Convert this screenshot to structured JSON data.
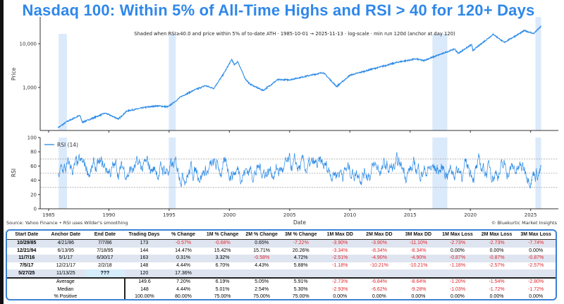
{
  "title": "Nasdaq 100: Within 5% of All-Time Highs and RSI > 40 for 120+ Days",
  "colors": {
    "accent": "#2f87ea",
    "line": "#2a8ae6",
    "shade": "#dbeafb",
    "negative": "#e0252b"
  },
  "chart_data": [
    {
      "type": "line",
      "title": "Shaded when RSI≥40.0 and price within 5% of to-date ATH · 1985-10-01 → 2025-11-13 · log-scale · min run 120d (anchor at day 120)",
      "ylabel": "Price",
      "yscale": "log",
      "ylim": [
        115,
        30000
      ],
      "yticks": [
        {
          "value": 1000,
          "label": "1,000"
        },
        {
          "value": 10000,
          "label": "10,000"
        }
      ],
      "xlim": [
        1984.3,
        2027.3
      ],
      "shaded_periods": [
        [
          1985.83,
          1986.52
        ],
        [
          1994.97,
          1995.55
        ],
        [
          2016.85,
          2018.09
        ],
        [
          2025.4,
          2025.87
        ]
      ],
      "series": [
        {
          "name": "Nasdaq 100",
          "points": [
            [
              1985.8,
              120
            ],
            [
              1986.5,
              165
            ],
            [
              1987.6,
              230
            ],
            [
              1987.8,
              160
            ],
            [
              1988.5,
              190
            ],
            [
              1989.7,
              260
            ],
            [
              1990.8,
              190
            ],
            [
              1991.5,
              290
            ],
            [
              1993,
              350
            ],
            [
              1994,
              380
            ],
            [
              1994.9,
              360
            ],
            [
              1995.5,
              480
            ],
            [
              1996,
              620
            ],
            [
              1997,
              850
            ],
            [
              1998,
              1100
            ],
            [
              1998.7,
              950
            ],
            [
              1999.5,
              2000
            ],
            [
              2000.2,
              4400
            ],
            [
              2000.4,
              3300
            ],
            [
              2000.7,
              3900
            ],
            [
              2001.3,
              1600
            ],
            [
              2001.7,
              1200
            ],
            [
              2002.8,
              850
            ],
            [
              2004,
              1500
            ],
            [
              2005,
              1500
            ],
            [
              2007.8,
              2200
            ],
            [
              2008.9,
              1050
            ],
            [
              2010,
              1900
            ],
            [
              2012,
              2700
            ],
            [
              2014,
              3800
            ],
            [
              2015.5,
              4500
            ],
            [
              2016.1,
              4100
            ],
            [
              2018.7,
              7600
            ],
            [
              2018.98,
              6000
            ],
            [
              2020.1,
              9600
            ],
            [
              2020.2,
              7000
            ],
            [
              2021.9,
              16500
            ],
            [
              2022.8,
              10700
            ],
            [
              2024.5,
              20000
            ],
            [
              2025.25,
              17000
            ],
            [
              2025.87,
              25000
            ]
          ]
        }
      ]
    },
    {
      "type": "line",
      "ylabel": "RSI",
      "xlabel": "Date",
      "ylim": [
        0,
        100
      ],
      "yticks": [
        0,
        20,
        40,
        60,
        80,
        100
      ],
      "reference_lines": [
        30,
        50,
        70
      ],
      "xticks": [
        1985,
        1990,
        1995,
        2000,
        2005,
        2010,
        2015,
        2020,
        2025
      ],
      "legend": {
        "label": "RSI (14)",
        "position": "top-left"
      },
      "series": [
        {
          "name": "RSI (14)",
          "mean": 55,
          "range": [
            12,
            89
          ]
        }
      ]
    }
  ],
  "footer": {
    "source": "Source: Yahoo Finance • RSI uses Wilder's smoothing",
    "credit": "© Bluekurtic Market Insights"
  },
  "table": {
    "headers": [
      "Start Date",
      "Anchor Date",
      "End Date",
      "Trading Days",
      "% Change",
      "1M % Change",
      "2M % Change",
      "3M % Change",
      "1M Max DD",
      "2M Max DD",
      "3M Max DD",
      "1M Max Loss",
      "2M Max Loss",
      "3M Max Loss"
    ],
    "rows": [
      [
        "10/29/85",
        "4/21/86",
        "7/7/86",
        "173",
        "-0.57%",
        "-0.68%",
        "0.65%",
        "-7.22%",
        "-3.90%",
        "-3.90%",
        "-11.10%",
        "-2.73%",
        "-2.73%",
        "-7.74%"
      ],
      [
        "12/21/94",
        "6/13/95",
        "7/18/95",
        "144",
        "14.47%",
        "15.42%",
        "15.71%",
        "20.26%",
        "-3.34%",
        "-8.34%",
        "-8.34%",
        "0.00%",
        "0.00%",
        "0.00%"
      ],
      [
        "11/7/16",
        "5/1/17",
        "6/30/17",
        "163",
        "0.31%",
        "3.32%",
        "-0.58%",
        "4.72%",
        "-2.51%",
        "-4.90%",
        "-4.90%",
        "-0.87%",
        "-0.87%",
        "-0.87%"
      ],
      [
        "7/5/17",
        "12/21/17",
        "2/2/18",
        "148",
        "4.44%",
        "6.70%",
        "4.43%",
        "5.88%",
        "-1.18%",
        "-10.21%",
        "-10.21%",
        "-1.18%",
        "-2.57%",
        "-2.57%"
      ],
      [
        "5/27/25",
        "11/13/25",
        "???",
        "120",
        "17.36%",
        "",
        "",
        "",
        "",
        "",
        "",
        "",
        "",
        ""
      ]
    ],
    "summary": [
      {
        "label": "Average",
        "values": [
          "149.6",
          "7.20%",
          "6.19%",
          "5.05%",
          "5.91%",
          "-2.73%",
          "-6.84%",
          "-8.64%",
          "-1.20%",
          "-1.54%",
          "-2.80%"
        ]
      },
      {
        "label": "Median",
        "values": [
          "148",
          "4.44%",
          "5.01%",
          "2.54%",
          "5.30%",
          "-2.93%",
          "-6.62%",
          "-9.28%",
          "-1.03%",
          "-1.72%",
          "-1.72%"
        ]
      },
      {
        "label": "% Positive",
        "values": [
          "100.00%",
          "80.00%",
          "75.00%",
          "75.00%",
          "75.00%",
          "0.00%",
          "0.00%",
          "0.00%",
          "0.00%",
          "0.00%",
          "0.00%"
        ]
      }
    ]
  }
}
